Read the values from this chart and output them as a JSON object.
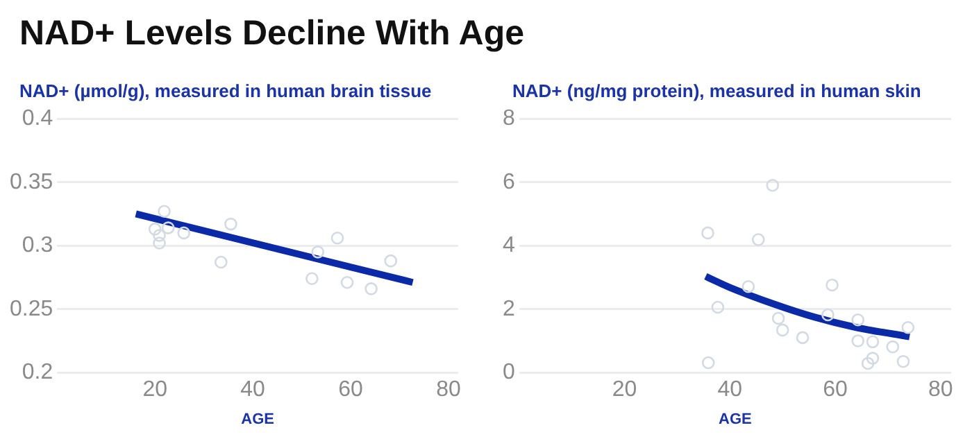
{
  "chart_data": [
    {
      "type": "scatter",
      "title": "NAD+ Levels Decline With Age",
      "ylabel": "NAD+ (µmol/g), measured in human brain tissue",
      "xlabel": "AGE",
      "xlim": [
        0,
        82
      ],
      "xticks": [
        20,
        40,
        60,
        80
      ],
      "ylim": [
        0.2,
        0.4
      ],
      "yticks": [
        0.2,
        0.25,
        0.3,
        0.35,
        0.4
      ],
      "grid": "y",
      "series": [
        {
          "marker": "circle",
          "color": "#d3dae3",
          "x": [
            20,
            20.9,
            20.9,
            21.9,
            22.7,
            25.9,
            33.5,
            35.5,
            52.1,
            53.3,
            57.3,
            59.3,
            64.2,
            68.2
          ],
          "values": [
            0.313,
            0.308,
            0.302,
            0.327,
            0.314,
            0.31,
            0.287,
            0.317,
            0.274,
            0.295,
            0.306,
            0.271,
            0.266,
            0.288
          ]
        },
        {
          "type": "line",
          "color": "#0a2aa8",
          "x": [
            16.1,
            72.7
          ],
          "values": [
            0.325,
            0.271
          ]
        }
      ]
    },
    {
      "type": "scatter",
      "ylabel": "NAD+ (ng/mg protein), measured in human skin",
      "xlabel": "AGE",
      "xlim": [
        0,
        82
      ],
      "xticks": [
        20,
        40,
        60,
        80
      ],
      "ylim": [
        0,
        8
      ],
      "yticks": [
        0,
        2,
        4,
        6,
        8
      ],
      "grid": "y",
      "series": [
        {
          "marker": "circle",
          "color": "#d3dae3",
          "x": [
            35.8,
            35.9,
            37.7,
            43.5,
            45.4,
            48.1,
            49.2,
            50,
            53.8,
            58.6,
            59.4,
            64.3,
            64.3,
            66.2,
            67.1,
            67.1,
            70.9,
            72.9,
            73.8
          ],
          "values": [
            4.4,
            0.31,
            2.06,
            2.71,
            4.19,
            5.9,
            1.71,
            1.34,
            1.1,
            1.82,
            2.76,
            1.66,
            1,
            0.29,
            0.97,
            0.45,
            0.81,
            0.35,
            1.42
          ]
        },
        {
          "type": "line",
          "color": "#0a2aa8",
          "x": [
            35.4,
            40,
            48,
            56,
            64,
            74.1
          ],
          "values": [
            3.03,
            2.68,
            2.18,
            1.75,
            1.42,
            1.13
          ]
        }
      ]
    }
  ]
}
